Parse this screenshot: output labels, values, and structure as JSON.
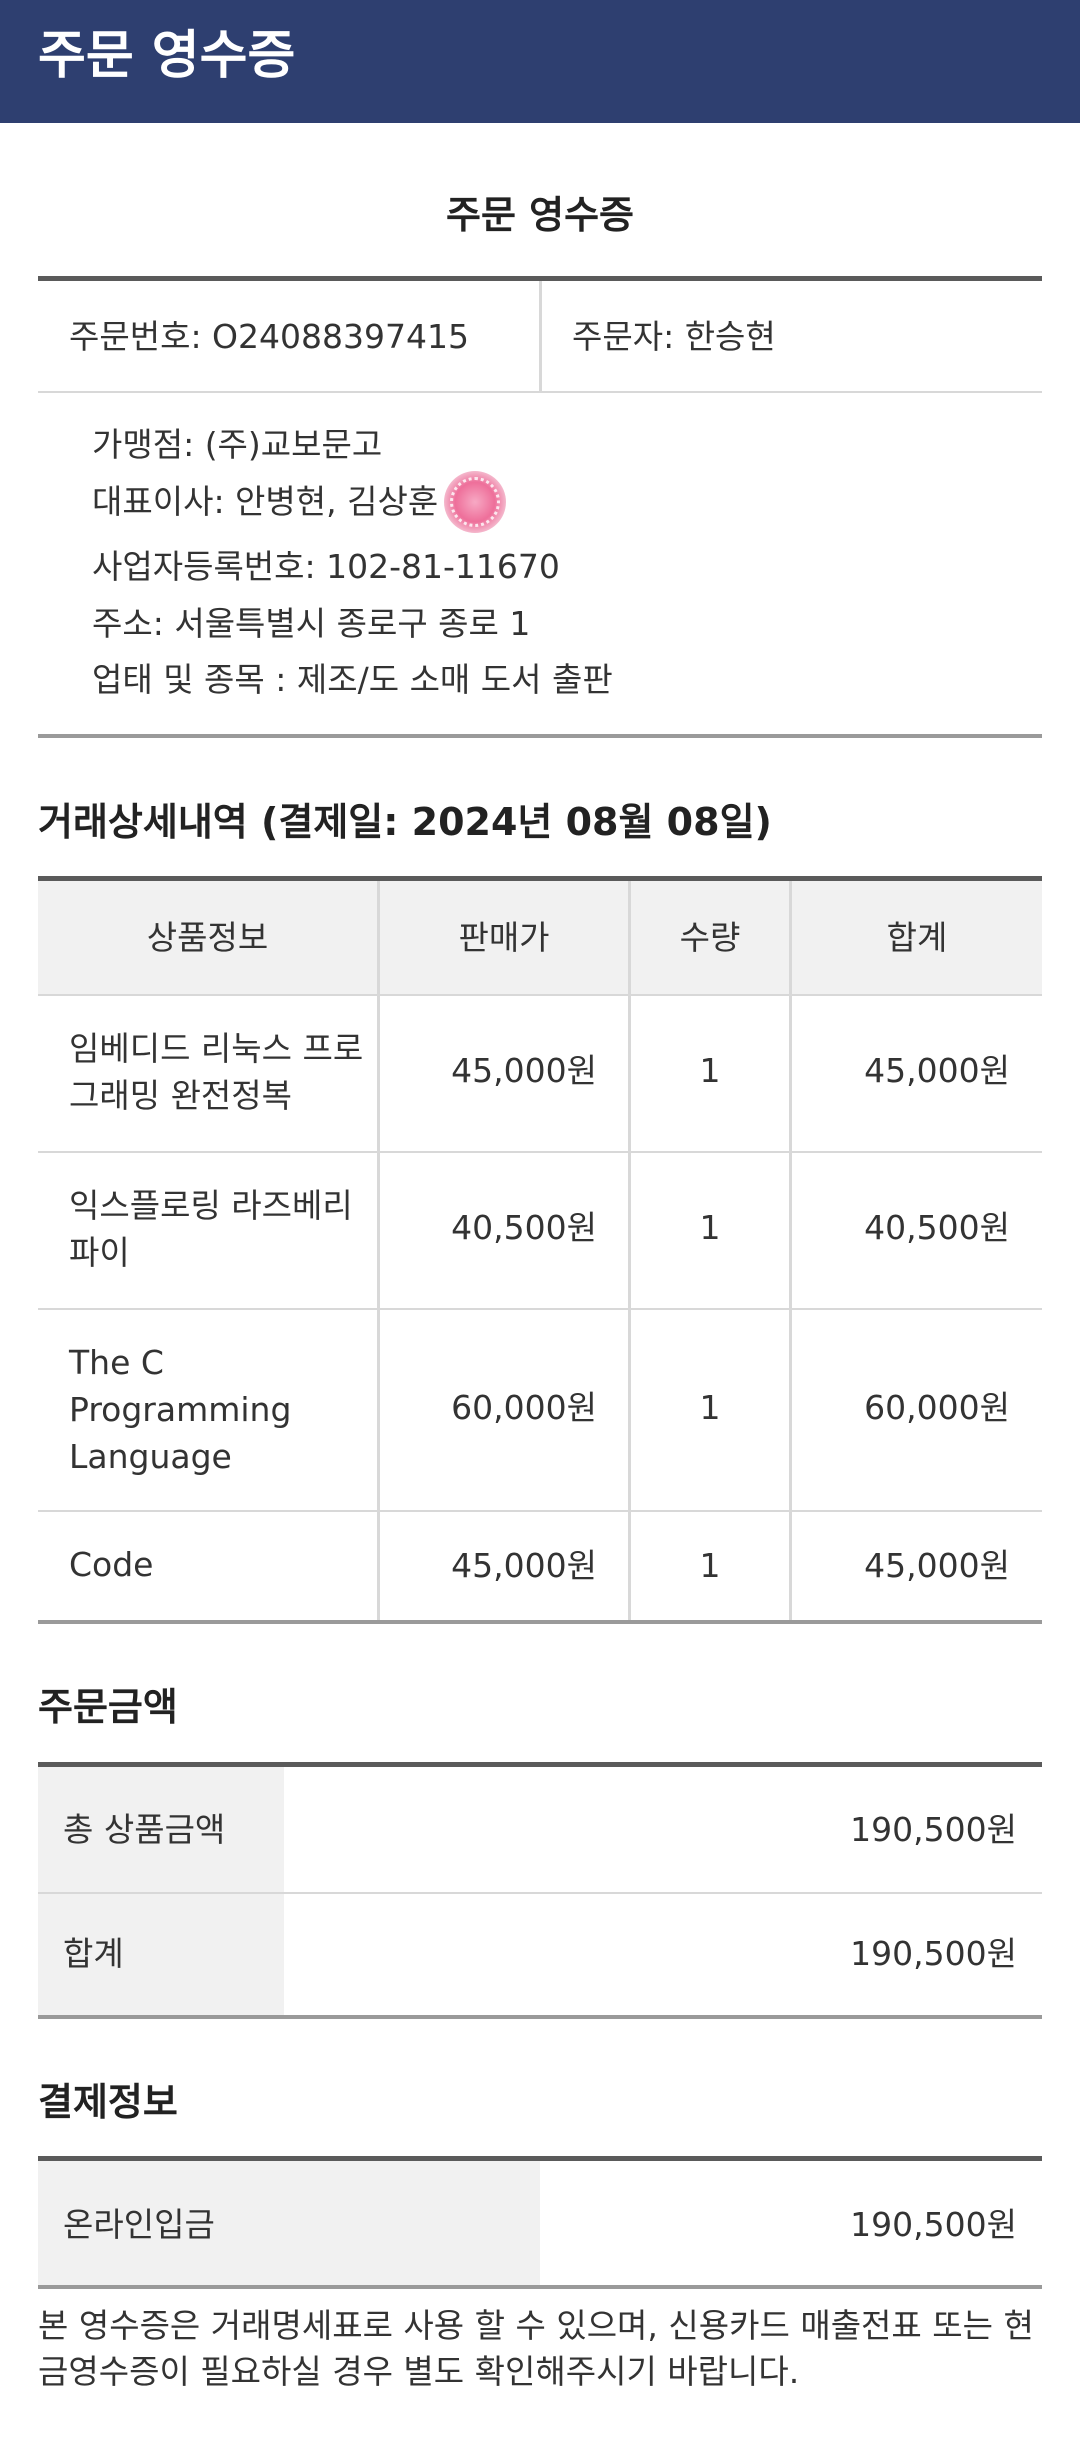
{
  "header": {
    "title": "주문 영수증"
  },
  "receipt": {
    "title": "주문 영수증",
    "order_number": "주문번호: O24088397415",
    "orderer": "주문자: 한승현"
  },
  "merchant": {
    "store": "가맹점: (주)교보문고",
    "ceo": "대표이사: 안병현, 김상훈",
    "business_number": "사업자등록번호: 102-81-11670",
    "address": "주소: 서울특별시 종로구 종로 1",
    "business_type": "업태 및 종목 : 제조/도 소매 도서 출판"
  },
  "details": {
    "title": "거래상세내역 (결제일: 2024년 08월 08일)",
    "headers": [
      "상품정보",
      "판매가",
      "수량",
      "합계"
    ],
    "rows": [
      {
        "name": "임베디드 리눅스 프로그래밍 완전정복",
        "price": "45,000원",
        "qty": "1",
        "total": "45,000원"
      },
      {
        "name": "익스플로링 라즈베리 파이",
        "price": "40,500원",
        "qty": "1",
        "total": "40,500원"
      },
      {
        "name": "The C Programming Language",
        "price": "60,000원",
        "qty": "1",
        "total": "60,000원"
      },
      {
        "name": "Code",
        "price": "45,000원",
        "qty": "1",
        "total": "45,000원"
      }
    ]
  },
  "order_amount": {
    "title": "주문금액",
    "rows": [
      {
        "label": "총 상품금액",
        "value": "190,500원"
      },
      {
        "label": "합계",
        "value": "190,500원"
      }
    ]
  },
  "payment": {
    "title": "결제정보",
    "rows": [
      {
        "label": "온라인입금",
        "value": "190,500원"
      }
    ]
  },
  "footer": {
    "note": "본 영수증은 거래명세표로 사용 할 수 있으며, 신용카드 매출전표 또는 현금영수증이 필요하실 경우 별도 확인해주시기 바랍니다."
  },
  "colors": {
    "header_bg": "#2e3f70",
    "table_header_bg": "#f1f1f1",
    "seal": "#ee6f9a"
  }
}
